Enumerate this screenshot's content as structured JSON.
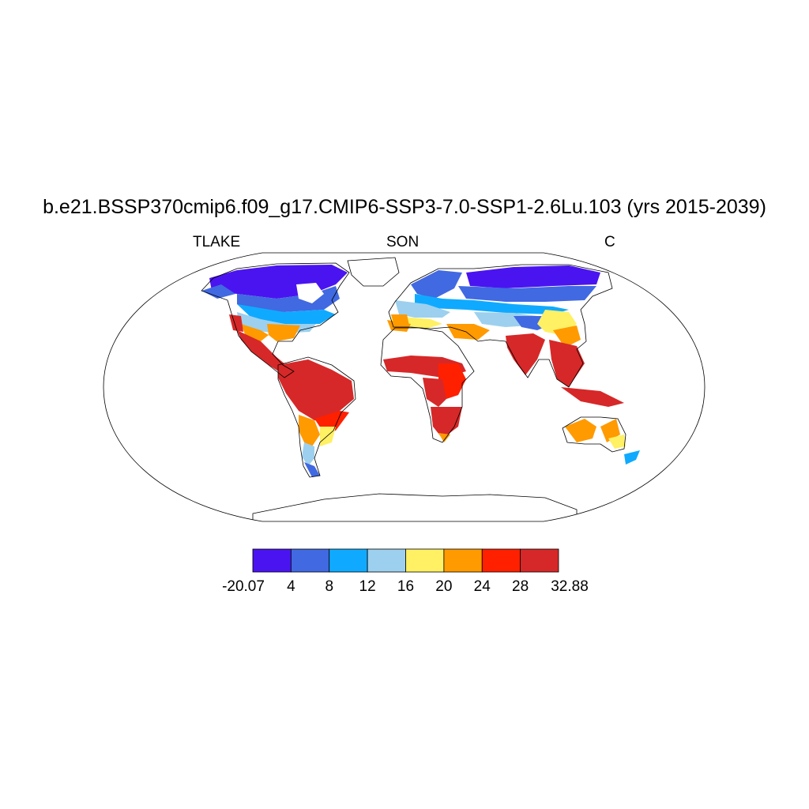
{
  "title": "b.e21.BSSP370cmip6.f09_g17.CMIP6-SSP3-7.0-SSP1-2.6Lu.103 (yrs 2015-2039)",
  "subtitle_left": "TLAKE",
  "subtitle_center": "SON",
  "subtitle_right": "C",
  "colorbar": {
    "colors": [
      "#4a14f0",
      "#4169e1",
      "#0faaff",
      "#9dd0ee",
      "#fff064",
      "#ff9a00",
      "#ff2000",
      "#d62828"
    ],
    "labels": [
      "-20.07",
      "4",
      "8",
      "12",
      "16",
      "20",
      "24",
      "28",
      "32.88"
    ]
  }
}
